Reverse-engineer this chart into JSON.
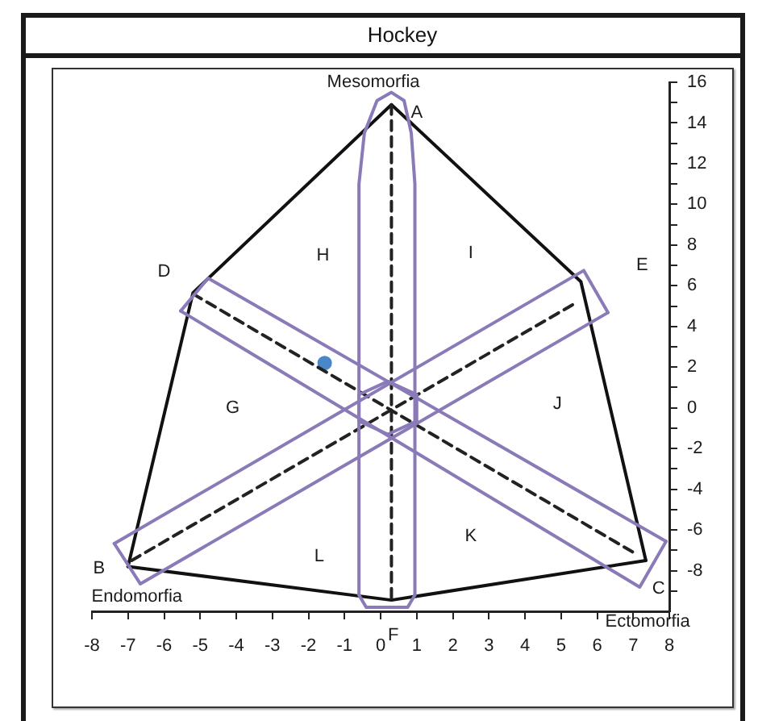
{
  "chart_data": {
    "type": "line",
    "title": "Hockey",
    "xlim": [
      -8,
      8
    ],
    "ylim": [
      -10,
      16
    ],
    "xticks": [
      -8,
      -7,
      -6,
      -5,
      -4,
      -3,
      -2,
      -1,
      0,
      1,
      2,
      3,
      4,
      5,
      6,
      7,
      8
    ],
    "yticks": [
      {
        "value": -9,
        "label": null
      },
      -8,
      {
        "value": -7,
        "label": null
      },
      -6,
      {
        "value": -5,
        "label": null
      },
      -4,
      {
        "value": -3,
        "label": null
      },
      -2,
      {
        "value": -1,
        "label": null
      },
      0,
      {
        "value": 1,
        "label": null
      },
      2,
      {
        "value": 3,
        "label": null
      },
      4,
      {
        "value": 5,
        "label": null
      },
      6,
      {
        "value": 7,
        "label": null
      },
      8,
      {
        "value": 9,
        "label": null
      },
      10,
      {
        "value": 11,
        "label": null
      },
      12,
      {
        "value": 13,
        "label": null
      },
      14,
      {
        "value": 15,
        "label": null
      },
      16
    ],
    "series": [
      {
        "color": "#8a7ab8",
        "x": [
          -0.6,
          -0.6,
          -0.45,
          -0.1,
          0.3,
          0.65,
          0.85,
          0.95,
          0.95
        ],
        "values": [
          -9.2,
          11,
          13.5,
          15.1,
          15.5,
          15.1,
          13.5,
          11,
          -9.2
        ]
      },
      {
        "color": "#8a7ab8",
        "x": [
          -0.6,
          -0.4,
          0.75,
          0.95
        ],
        "values": [
          -9.2,
          -9.8,
          -9.8,
          -9.2
        ]
      },
      {
        "color": "#8a7ab8",
        "x": [
          -5.54,
          -4.78,
          7.91
        ],
        "values": [
          4.76,
          6.37,
          -6.56
        ]
      },
      {
        "color": "#8a7ab8",
        "x": [
          -5.54,
          7.18,
          7.91
        ],
        "values": [
          4.76,
          -8.81,
          -6.56
        ]
      },
      {
        "color": "#8a7ab8",
        "x": [
          -7.38,
          5.63,
          6.3
        ],
        "values": [
          -6.67,
          6.75,
          4.68
        ]
      },
      {
        "color": "#8a7ab8",
        "x": [
          -7.38,
          -6.66,
          6.3
        ],
        "values": [
          -6.67,
          -8.65,
          4.68
        ]
      },
      {
        "color": "#8a7ab8",
        "x": [
          -0.6,
          -0.6,
          0.2,
          1.0,
          1.0
        ],
        "values": [
          -0.65,
          0.65,
          1.3,
          0.65,
          -0.65
        ]
      },
      {
        "color": "#8a7ab8",
        "x": [
          -0.6,
          0.2,
          1.0
        ],
        "values": [
          -0.65,
          -1.3,
          -0.65
        ]
      },
      {
        "color": "#222222",
        "line_style": "dashed",
        "x": [
          0.3,
          0.3
        ],
        "values": [
          14.9,
          -9.45
        ]
      },
      {
        "color": "#222222",
        "line_style": "dashed",
        "x": [
          -5.2,
          7.0
        ],
        "values": [
          5.6,
          -7.1
        ]
      },
      {
        "color": "#222222",
        "line_style": "dashed",
        "x": [
          -6.9,
          5.45
        ],
        "values": [
          -7.5,
          5.2
        ]
      },
      {
        "color": "#111111",
        "x": [
          -7.0,
          -5.2,
          0.3,
          5.55,
          7.35
        ],
        "values": [
          -7.8,
          5.65,
          14.9,
          6.2,
          -7.5
        ]
      },
      {
        "color": "#111111",
        "x": [
          -7.0,
          0.3,
          7.35
        ],
        "values": [
          -7.8,
          -9.45,
          -7.5
        ]
      },
      {
        "type": "scatter",
        "color": "#4a86c8",
        "marker": "circle",
        "x": [
          -1.55
        ],
        "values": [
          2.2
        ]
      }
    ],
    "annotations": [
      "Mesomorfia",
      "A",
      "D",
      "H",
      "I",
      "E",
      "G",
      "J",
      "L",
      "K",
      "B",
      "C",
      "Endomorfia",
      "F",
      "Ectomorfia"
    ]
  }
}
